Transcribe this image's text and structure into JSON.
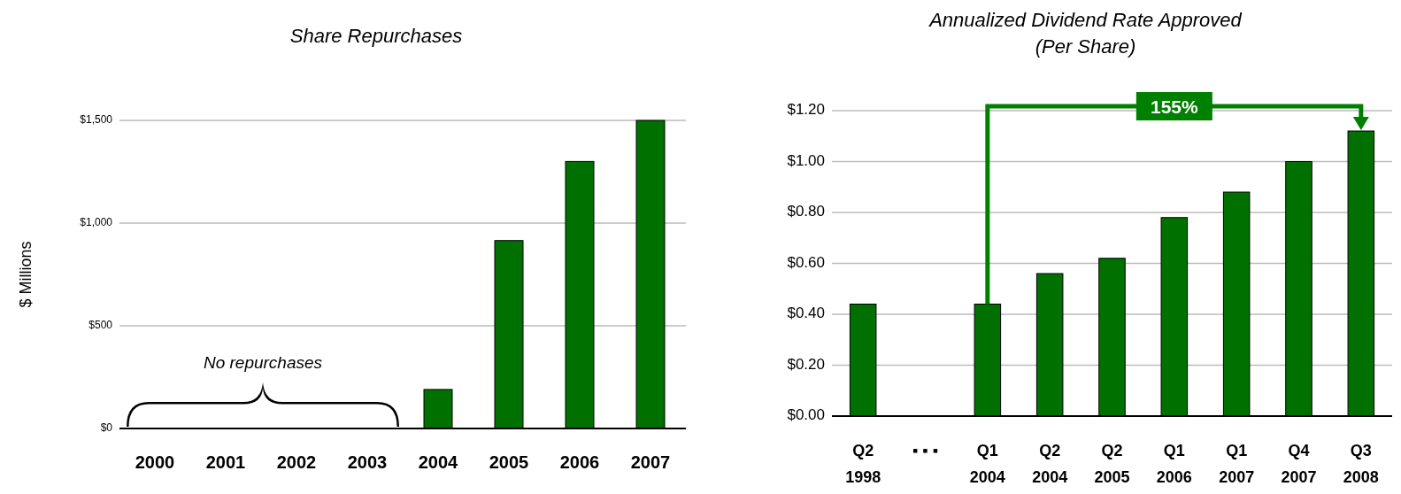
{
  "chart_data": [
    {
      "type": "bar",
      "title": "Share Repurchases",
      "ylabel": "$ Millions",
      "categories": [
        "2000",
        "2001",
        "2002",
        "2003",
        "2004",
        "2005",
        "2006",
        "2007"
      ],
      "values": [
        0,
        0,
        0,
        0,
        190,
        915,
        1300,
        1500
      ],
      "color": "#007000",
      "ylim": [
        0,
        1500
      ],
      "yticks": [
        {
          "value": 0,
          "label": "$0"
        },
        {
          "value": 500,
          "label": "$500"
        },
        {
          "value": 1000,
          "label": "$1,000"
        },
        {
          "value": 1500,
          "label": "$1,500"
        }
      ],
      "grid": "y",
      "annotations": [
        "No repurchases"
      ]
    },
    {
      "type": "bar",
      "title": "Annualized Dividend Rate Approved\n(Per Share)",
      "categories": [
        "Q2\n1998",
        "▪ ▪ ▪",
        "Q1\n2004",
        "Q2\n2004",
        "Q2\n2005",
        "Q1\n2006",
        "Q1\n2007",
        "Q4\n2007",
        "Q3\n2008"
      ],
      "values": [
        0.44,
        null,
        0.44,
        0.56,
        0.62,
        0.78,
        0.88,
        1.0,
        1.12
      ],
      "color": "#007000",
      "ylim": [
        0,
        1.2
      ],
      "yticks": [
        {
          "value": 0,
          "label": "$0.00"
        },
        {
          "value": 0.2,
          "label": "$0.20"
        },
        {
          "value": 0.4,
          "label": "$0.40"
        },
        {
          "value": 0.6,
          "label": "$0.60"
        },
        {
          "value": 0.8,
          "label": "$0.80"
        },
        {
          "value": 1.0,
          "label": "$1.00"
        },
        {
          "value": 1.2,
          "label": "$1.20"
        }
      ],
      "grid": "y",
      "annotations": [
        "155%"
      ]
    }
  ]
}
